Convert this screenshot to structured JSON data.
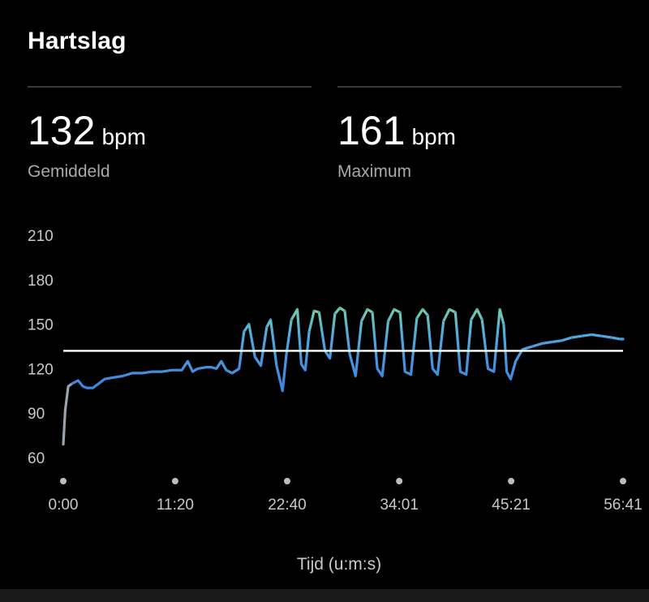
{
  "header": {
    "title": "Hartslag"
  },
  "stats": {
    "average": {
      "value": "132",
      "unit": "bpm",
      "label": "Gemiddeld"
    },
    "maximum": {
      "value": "161",
      "unit": "bpm",
      "label": "Maximum"
    }
  },
  "colors": {
    "line_base": "#3f86de",
    "line_mid": "#4fa7e0",
    "line_high": "#7ad49a",
    "start_gray": "#9aa2ad",
    "avg_line": "#ffffff",
    "axis_text": "#c8c8c8",
    "tick_dot": "#bdbdbd"
  },
  "chart_data": {
    "type": "line",
    "title": "Hartslag",
    "xlabel": "Tijd (u:m:s)",
    "ylabel": "",
    "ylim": [
      45,
      210
    ],
    "xlim": [
      0,
      56.68
    ],
    "y_ticks": [
      210,
      180,
      150,
      120,
      90,
      60
    ],
    "x_ticks": [
      {
        "value": 0,
        "label": "0:00"
      },
      {
        "value": 11.33,
        "label": "11:20"
      },
      {
        "value": 22.67,
        "label": "22:40"
      },
      {
        "value": 34.02,
        "label": "34:01"
      },
      {
        "value": 45.35,
        "label": "45:21"
      },
      {
        "value": 56.68,
        "label": "56:41"
      }
    ],
    "average_line": 132,
    "series": [
      {
        "name": "Hartslag",
        "x": [
          0,
          0.2,
          0.5,
          0.9,
          1.5,
          2.0,
          2.4,
          3.0,
          3.6,
          4.2,
          5.0,
          6.0,
          7.0,
          8.0,
          9.0,
          10.0,
          11.0,
          12.0,
          12.6,
          13.1,
          13.6,
          14.5,
          15.0,
          15.5,
          16.0,
          16.5,
          17.1,
          17.8,
          18.3,
          18.8,
          19.4,
          20.0,
          20.6,
          21.0,
          21.6,
          22.2,
          22.6,
          23.1,
          23.7,
          24.1,
          24.5,
          24.9,
          25.4,
          25.9,
          26.5,
          27.0,
          27.5,
          28.0,
          28.5,
          29.0,
          29.6,
          30.2,
          30.8,
          31.3,
          31.8,
          32.3,
          32.9,
          33.5,
          34.1,
          34.6,
          35.2,
          35.8,
          36.4,
          36.9,
          37.4,
          37.9,
          38.5,
          39.1,
          39.7,
          40.2,
          40.8,
          41.3,
          41.9,
          42.4,
          43.0,
          43.6,
          44.2,
          44.6,
          44.9,
          45.3,
          45.8,
          46.5,
          47.5,
          48.5,
          49.5,
          50.5,
          51.5,
          52.5,
          53.5,
          54.5,
          55.5,
          56.4,
          56.68
        ],
        "values": [
          69,
          92,
          108,
          110,
          112,
          108,
          107,
          107,
          110,
          113,
          114,
          115,
          117,
          117,
          118,
          118,
          119,
          119,
          125,
          118,
          120,
          121,
          121,
          120,
          125,
          119,
          117,
          120,
          145,
          150,
          128,
          122,
          148,
          153,
          122,
          105,
          130,
          153,
          160,
          123,
          119,
          145,
          159,
          158,
          132,
          127,
          157,
          161,
          159,
          130,
          115,
          152,
          160,
          158,
          120,
          115,
          152,
          160,
          158,
          118,
          116,
          154,
          160,
          156,
          120,
          116,
          152,
          160,
          158,
          118,
          116,
          153,
          160,
          153,
          120,
          118,
          160,
          150,
          118,
          113,
          125,
          133,
          135,
          137,
          138,
          139,
          141,
          142,
          143,
          142,
          141,
          140,
          140
        ]
      }
    ]
  }
}
